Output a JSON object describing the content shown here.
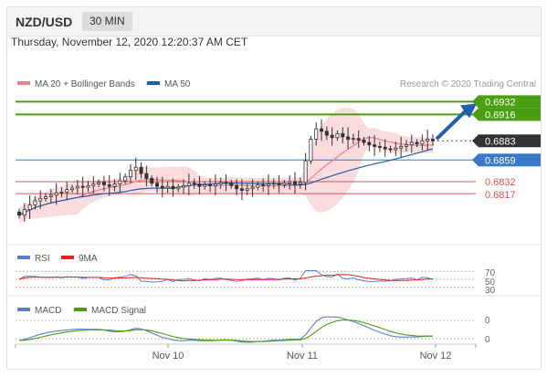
{
  "header": {
    "pair": "NZD/USD",
    "timeframe": "30 MIN"
  },
  "timestamp": "Thursday, November 12, 2020 12:20:37 AM CET",
  "colors": {
    "ma20": "#f08080",
    "bollinger": "#f8d0d4",
    "ma50": "#1f5fb0",
    "candle": "#333333",
    "resistance": "#4a9e12",
    "pivot": "#3a78c8",
    "support": "#e05050",
    "current": "#333333",
    "rsi": "#5a7fd0",
    "rsi9": "#e02020",
    "macd": "#5a7fd0",
    "macd_signal": "#4a9e12"
  },
  "chart_data": [
    {
      "type": "candlestick",
      "legend": [
        {
          "label": "MA 20 + Bollinger Bands",
          "key": "ma20"
        },
        {
          "label": "MA 50",
          "key": "ma50"
        }
      ],
      "credit": "Research © 2020 Trading Central",
      "ylim": [
        0.676,
        0.6945
      ],
      "closes": [
        0.679,
        0.6797,
        0.6803,
        0.6808,
        0.6811,
        0.6813,
        0.6815,
        0.6818,
        0.6819,
        0.6822,
        0.6824,
        0.6826,
        0.6825,
        0.6827,
        0.6829,
        0.6831,
        0.6828,
        0.6826,
        0.6829,
        0.6833,
        0.6838,
        0.6846,
        0.685,
        0.6842,
        0.6836,
        0.683,
        0.6826,
        0.6824,
        0.6826,
        0.6823,
        0.6825,
        0.6827,
        0.683,
        0.6829,
        0.6826,
        0.6828,
        0.6827,
        0.6829,
        0.6831,
        0.683,
        0.6827,
        0.6823,
        0.6821,
        0.6823,
        0.6825,
        0.6828,
        0.6827,
        0.6829,
        0.683,
        0.6828,
        0.683,
        0.6832,
        0.6829,
        0.6831,
        0.6858,
        0.6885,
        0.6898,
        0.6895,
        0.689,
        0.6887,
        0.6892,
        0.6888,
        0.6885,
        0.6886,
        0.6884,
        0.6881,
        0.6878,
        0.6876,
        0.6875,
        0.6873,
        0.6872,
        0.6874,
        0.6876,
        0.6878,
        0.6881,
        0.6879,
        0.6883,
        0.6885,
        0.6883
      ],
      "current_price": 0.6883,
      "levels": [
        {
          "value": "0.6932",
          "kind": "resistance"
        },
        {
          "value": "0.6916",
          "kind": "resistance"
        },
        {
          "value": "0.6883",
          "kind": "current"
        },
        {
          "value": "0.6859",
          "kind": "pivot"
        },
        {
          "value": "0.6832",
          "kind": "support"
        },
        {
          "value": "0.6817",
          "kind": "support"
        }
      ],
      "forecast_target": 0.6932
    },
    {
      "type": "line",
      "name": "RSI",
      "legend": [
        {
          "label": "RSI",
          "key": "rsi"
        },
        {
          "label": "9MA",
          "key": "rsi9"
        }
      ],
      "yticks": [
        "70",
        "50",
        "30"
      ],
      "ylim": [
        20,
        80
      ]
    },
    {
      "type": "line",
      "name": "MACD",
      "legend": [
        {
          "label": "MACD",
          "key": "macd"
        },
        {
          "label": "MACD Signal",
          "key": "macd_signal"
        }
      ],
      "yticks": [
        "0",
        "0"
      ]
    }
  ],
  "x_axis": {
    "labels": [
      "Nov 10",
      "Nov 11",
      "Nov 12"
    ]
  }
}
